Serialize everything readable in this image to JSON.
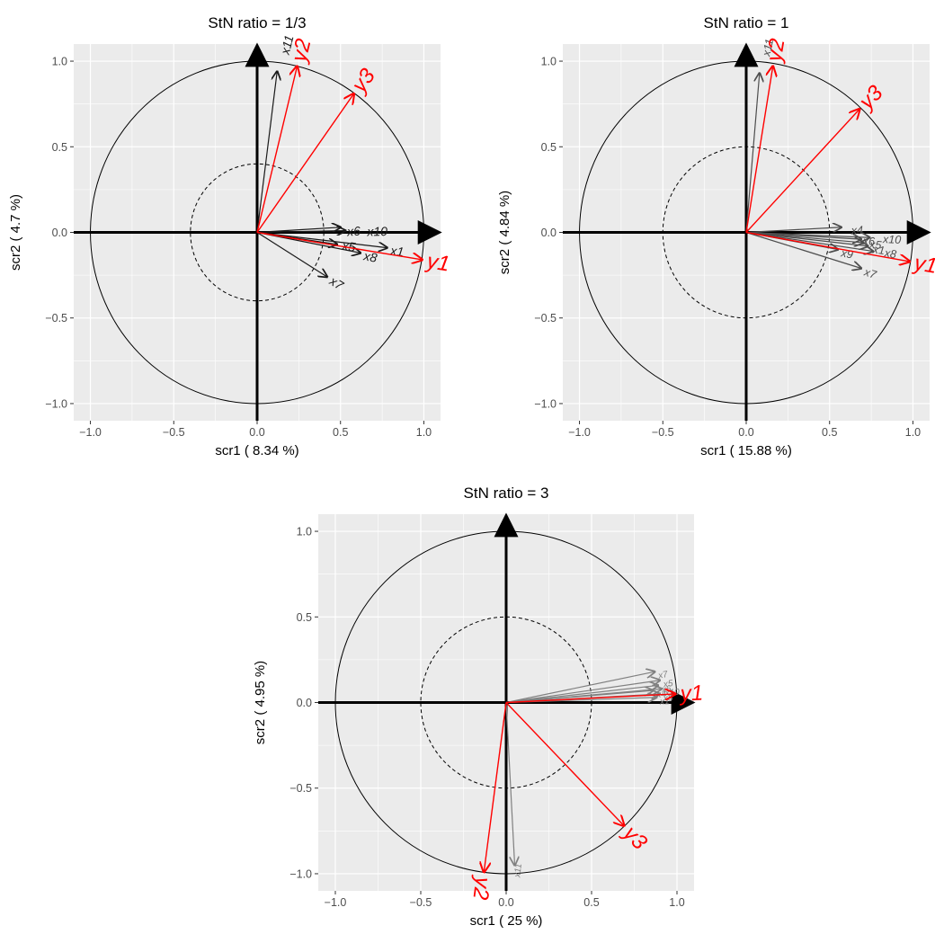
{
  "chart_data": [
    {
      "type": "scatter",
      "subtype": "correlation-circle",
      "title": "StN ratio = 1/3",
      "xlabel": "scr1 ( 8.34 %)",
      "ylabel": "scr2 ( 4.7 %)",
      "xlim": [
        -1.1,
        1.1
      ],
      "ylim": [
        -1.1,
        1.1
      ],
      "xticks": [
        "-1.0",
        "-0.5",
        "0.0",
        "0.5",
        "1.0"
      ],
      "yticks": [
        "-1.0",
        "-0.5",
        "0.0",
        "0.5",
        "1.0"
      ],
      "grid": true,
      "radii": [
        1,
        0.4
      ],
      "response_vectors": [
        {
          "name": "y1",
          "x": 0.99,
          "y": -0.16
        },
        {
          "name": "y2",
          "x": 0.24,
          "y": 0.97
        },
        {
          "name": "y3",
          "x": 0.58,
          "y": 0.81
        }
      ],
      "predictor_vectors": [
        {
          "name": "x11",
          "x": 0.12,
          "y": 0.94,
          "label_x": 0.17,
          "label_y": 1.04,
          "angle": -76
        },
        {
          "name": "x1",
          "x": 0.78,
          "y": -0.09
        },
        {
          "name": "x8",
          "x": 0.62,
          "y": -0.12
        },
        {
          "name": "x7",
          "x": 0.42,
          "y": -0.26
        },
        {
          "name": "x5",
          "x": 0.48,
          "y": -0.07,
          "label_x": 0.51,
          "label_y": -0.08
        },
        {
          "name": "x6",
          "x": 0.5,
          "y": 0.03,
          "label_x": 0.54,
          "label_y": 0.0
        },
        {
          "name": "x10",
          "x": 0.53,
          "y": 0.01,
          "label_x": 0.66,
          "label_y": 0.0
        }
      ]
    },
    {
      "type": "scatter",
      "subtype": "correlation-circle",
      "title": "StN ratio = 1",
      "xlabel": "scr1 ( 15.88 %)",
      "ylabel": "scr2 ( 4.84 %)",
      "xlim": [
        -1.1,
        1.1
      ],
      "ylim": [
        -1.1,
        1.1
      ],
      "xticks": [
        "-1.0",
        "-0.5",
        "0.0",
        "0.5",
        "1.0"
      ],
      "yticks": [
        "-1.0",
        "-0.5",
        "0.0",
        "0.5",
        "1.0"
      ],
      "grid": true,
      "radii": [
        1,
        0.5
      ],
      "response_vectors": [
        {
          "name": "y1",
          "x": 0.98,
          "y": -0.17
        },
        {
          "name": "y2",
          "x": 0.16,
          "y": 0.97
        },
        {
          "name": "y3",
          "x": 0.68,
          "y": 0.72
        }
      ],
      "predictor_vectors": [
        {
          "name": "x11",
          "x": 0.08,
          "y": 0.93,
          "label_x": 0.12,
          "label_y": 1.03,
          "angle": -78
        },
        {
          "name": "x7",
          "x": 0.69,
          "y": -0.21
        },
        {
          "name": "x9",
          "x": 0.55,
          "y": -0.1
        },
        {
          "name": "x4",
          "x": 0.57,
          "y": 0.03,
          "label_x": 0.63,
          "label_y": 0.01
        },
        {
          "name": "x10",
          "x": 0.74,
          "y": -0.03,
          "label_x": 0.82,
          "label_y": -0.04
        },
        {
          "name": "x8",
          "x": 0.76,
          "y": -0.11,
          "label_x": 0.83,
          "label_y": -0.12
        },
        {
          "name": "x5",
          "x": 0.7,
          "y": -0.06,
          "label_x": 0.74,
          "label_y": -0.07
        },
        {
          "name": "x6",
          "x": 0.69,
          "y": -0.04,
          "label_x": 0.7,
          "label_y": -0.05
        },
        {
          "name": "x1",
          "x": 0.73,
          "y": -0.08,
          "label_x": 0.76,
          "label_y": -0.1
        }
      ]
    },
    {
      "type": "scatter",
      "subtype": "correlation-circle",
      "title": "StN ratio = 3",
      "xlabel": "scr1 ( 25 %)",
      "ylabel": "scr2 ( 4.95 %)",
      "xlim": [
        -1.1,
        1.1
      ],
      "ylim": [
        -1.1,
        1.1
      ],
      "xticks": [
        "-1.0",
        "-0.5",
        "0.0",
        "0.5",
        "1.0"
      ],
      "yticks": [
        "-1.0",
        "-0.5",
        "0.0",
        "0.5",
        "1.0"
      ],
      "grid": true,
      "radii": [
        1,
        0.5
      ],
      "response_vectors": [
        {
          "name": "y1",
          "x": 0.99,
          "y": 0.05
        },
        {
          "name": "y2",
          "x": -0.13,
          "y": -0.99
        },
        {
          "name": "y3",
          "x": 0.69,
          "y": -0.72
        }
      ],
      "predictor_vectors": [
        {
          "name": "x11",
          "x": 0.05,
          "y": -0.95,
          "label_x": 0.06,
          "label_y": -1.02,
          "angle": -84
        },
        {
          "name": "x7",
          "x": 0.87,
          "y": 0.18
        },
        {
          "name": "x5",
          "x": 0.9,
          "y": 0.13
        },
        {
          "name": "x6",
          "x": 0.89,
          "y": 0.1
        },
        {
          "name": "x10",
          "x": 0.91,
          "y": 0.08
        },
        {
          "name": "x8",
          "x": 0.9,
          "y": 0.05
        },
        {
          "name": "x1",
          "x": 0.88,
          "y": 0.03
        },
        {
          "name": "x4",
          "x": 0.86,
          "y": 0.07
        }
      ]
    }
  ],
  "colors": {
    "panel_background": "#ebebeb",
    "grid": "#ffffff",
    "response_vector": "#ff0000",
    "predictor_vector_dark": "#1a1a1a",
    "predictor_vector_gray": "#808080",
    "axis": "#000000"
  }
}
